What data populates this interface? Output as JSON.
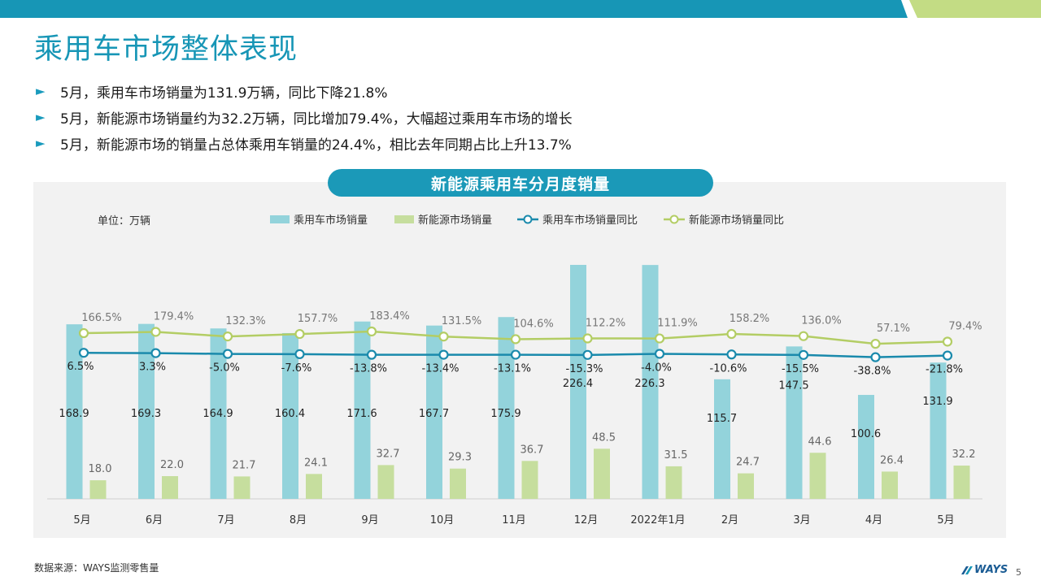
{
  "title": "乘用车市场整体表现",
  "bullets": [
    "5月，乘用车市场销量为131.9万辆，同比下降21.8%",
    "5月，新能源市场销量约为32.2万辆，同比增加79.4%，大幅超过乘用车市场的增长",
    "5月，新能源市场的销量占总体乘用车销量的24.4%，相比去年同期占比上升13.7%"
  ],
  "bullet_marker": "►",
  "colors": {
    "accent": "#1796b6",
    "banner": "#1b99b8",
    "bar_total": "#93d3db",
    "bar_nev": "#c6de9e",
    "line_total": "#1a8aac",
    "line_nev": "#b3cd64",
    "topbar_green": "#c3dc84"
  },
  "chart_data": {
    "type": "bar",
    "title": "新能源乘用车分月度销量",
    "unit_label": "单位：万辆",
    "legend_position": "top",
    "categories": [
      "5月",
      "6月",
      "7月",
      "8月",
      "9月",
      "10月",
      "11月",
      "12月",
      "2022年1月",
      "2月",
      "3月",
      "4月",
      "5月"
    ],
    "series": [
      {
        "name": "乘用车市场销量",
        "kind": "bar",
        "values": [
          168.9,
          169.3,
          164.9,
          160.4,
          171.6,
          167.7,
          175.9,
          226.4,
          226.3,
          115.7,
          147.5,
          100.6,
          131.9
        ]
      },
      {
        "name": "新能源市场销量",
        "kind": "bar",
        "values": [
          18.0,
          22.0,
          21.7,
          24.1,
          32.7,
          29.3,
          36.7,
          48.5,
          31.5,
          24.7,
          44.6,
          26.4,
          32.2
        ]
      },
      {
        "name": "乘用车市场销量同比",
        "kind": "line",
        "values": [
          6.5,
          3.3,
          -5.0,
          -7.6,
          -13.8,
          -13.4,
          -13.1,
          -15.3,
          -4.0,
          -10.6,
          -15.5,
          -38.8,
          -21.8
        ]
      },
      {
        "name": "新能源市场销量同比",
        "kind": "line",
        "values": [
          166.5,
          179.4,
          132.3,
          157.7,
          183.4,
          131.5,
          104.6,
          112.2,
          111.9,
          158.2,
          136.0,
          57.1,
          79.4
        ]
      }
    ],
    "labels": {
      "total": [
        "168.9",
        "169.3",
        "164.9",
        "160.4",
        "171.6",
        "167.7",
        "175.9",
        "226.4",
        "226.3",
        "115.7",
        "147.5",
        "100.6",
        "131.9"
      ],
      "nev": [
        "18.0",
        "22.0",
        "21.7",
        "24.1",
        "32.7",
        "29.3",
        "36.7",
        "48.5",
        "31.5",
        "24.7",
        "44.6",
        "26.4",
        "32.2"
      ],
      "total_yoy": [
        "6.5%",
        "3.3%",
        "-5.0%",
        "-7.6%",
        "-13.8%",
        "-13.4%",
        "-13.1%",
        "-15.3%",
        "-4.0%",
        "-10.6%",
        "-15.5%",
        "-38.8%",
        "-21.8%"
      ],
      "nev_yoy": [
        "166.5%",
        "179.4%",
        "132.3%",
        "157.7%",
        "183.4%",
        "131.5%",
        "104.6%",
        "112.2%",
        "111.9%",
        "158.2%",
        "136.0%",
        "57.1%",
        "79.4%"
      ]
    },
    "ylim_sales": [
      0,
      230
    ],
    "grid": false
  },
  "footer": {
    "source": "数据来源：WAYS监测零售量",
    "logo_text": "WAYS",
    "page_number": "5"
  }
}
